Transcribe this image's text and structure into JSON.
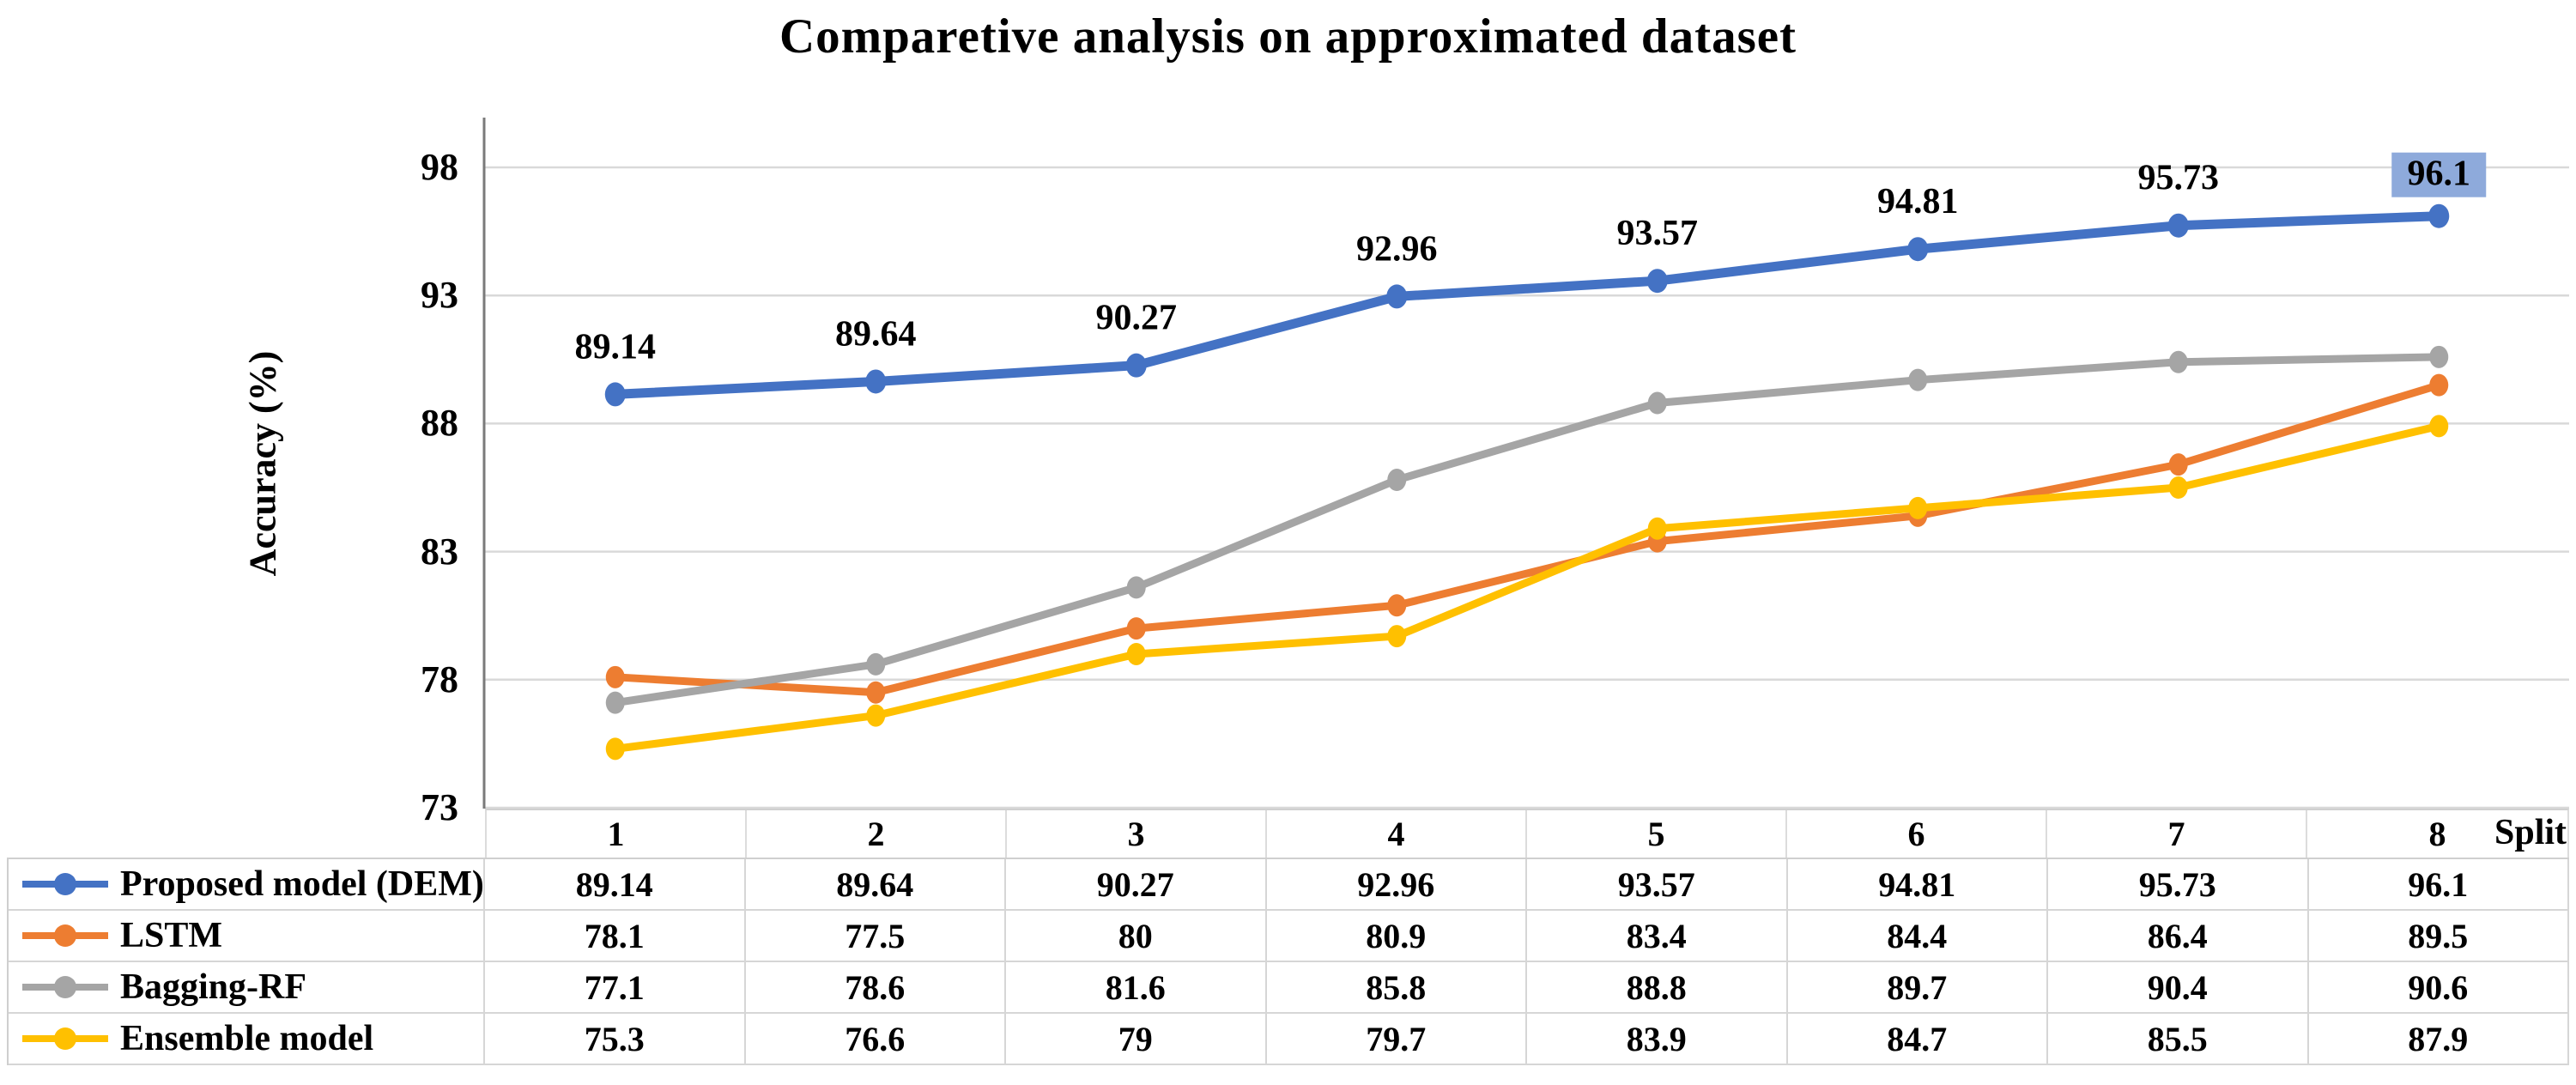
{
  "chart_data": {
    "type": "line",
    "title": "Comparetive analysis on approximated dataset",
    "xlabel": "Split",
    "ylabel": "Accuracy (%)",
    "ylim": [
      73,
      98
    ],
    "yticks": [
      98,
      93,
      88,
      83,
      78,
      73
    ],
    "grid": true,
    "legend_position": "table-left",
    "categories": [
      "1",
      "2",
      "3",
      "4",
      "5",
      "6",
      "7",
      "8"
    ],
    "series": [
      {
        "name": "Proposed model (DEM)",
        "color": "#4472C4",
        "values": [
          89.14,
          89.64,
          90.27,
          92.96,
          93.57,
          94.81,
          95.73,
          96.1
        ],
        "data_labels": true,
        "highlight_last": true
      },
      {
        "name": "LSTM",
        "color": "#ED7D31",
        "values": [
          78.1,
          77.5,
          80,
          80.9,
          83.4,
          84.4,
          86.4,
          89.5
        ],
        "data_labels": false,
        "highlight_last": false
      },
      {
        "name": "Bagging-RF",
        "color": "#A5A5A5",
        "values": [
          77.1,
          78.6,
          81.6,
          85.8,
          88.8,
          89.7,
          90.4,
          90.6
        ],
        "data_labels": false,
        "highlight_last": false
      },
      {
        "name": "Ensemble model",
        "color": "#FFC000",
        "values": [
          75.3,
          76.6,
          79,
          79.7,
          83.9,
          84.7,
          85.5,
          87.9
        ],
        "data_labels": false,
        "highlight_last": false
      }
    ],
    "highlight_color": "#8EAADB",
    "gridline_color": "#D9D9D9",
    "axis_line_color": "#7A7A7A"
  }
}
